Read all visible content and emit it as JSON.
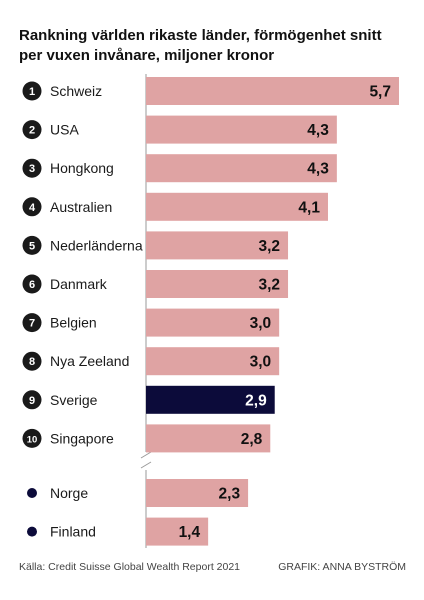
{
  "title": "Rankning världen rikaste länder, förmögenhet snitt per vuxen invånare, miljoner kronor",
  "source": "Källa: Credit Suisse Global Wealth Report 2021",
  "credit": "GRAFIK: ANNA BYSTRÖM",
  "colors": {
    "bar": "#dfa3a3",
    "highlight": "#0c0b3a",
    "axis": "#9a9a9a",
    "rank_badge": "#1a1a1a"
  },
  "chart_data": {
    "type": "bar",
    "orientation": "horizontal",
    "ranked": [
      {
        "rank": "1",
        "label": "Schweiz",
        "value": 5.7,
        "value_label": "5,7",
        "highlight": false
      },
      {
        "rank": "2",
        "label": "USA",
        "value": 4.3,
        "value_label": "4,3",
        "highlight": false
      },
      {
        "rank": "3",
        "label": "Hongkong",
        "value": 4.3,
        "value_label": "4,3",
        "highlight": false
      },
      {
        "rank": "4",
        "label": "Australien",
        "value": 4.1,
        "value_label": "4,1",
        "highlight": false
      },
      {
        "rank": "5",
        "label": "Nederländerna",
        "value": 3.2,
        "value_label": "3,2",
        "highlight": false
      },
      {
        "rank": "6",
        "label": "Danmark",
        "value": 3.2,
        "value_label": "3,2",
        "highlight": false
      },
      {
        "rank": "7",
        "label": "Belgien",
        "value": 3.0,
        "value_label": "3,0",
        "highlight": false
      },
      {
        "rank": "8",
        "label": "Nya Zeeland",
        "value": 3.0,
        "value_label": "3,0",
        "highlight": false
      },
      {
        "rank": "9",
        "label": "Sverige",
        "value": 2.9,
        "value_label": "2,9",
        "highlight": true
      },
      {
        "rank": "10",
        "label": "Singapore",
        "value": 2.8,
        "value_label": "2,8",
        "highlight": false
      }
    ],
    "others": [
      {
        "label": "Norge",
        "value": 2.3,
        "value_label": "2,3"
      },
      {
        "label": "Finland",
        "value": 1.4,
        "value_label": "1,4"
      }
    ],
    "xlim": [
      0,
      5.7
    ],
    "axis_break": true
  }
}
